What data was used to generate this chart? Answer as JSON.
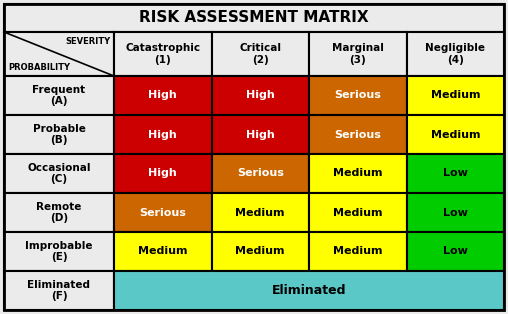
{
  "title": "RISK ASSESSMENT MATRIX",
  "col_headers": [
    "Catastrophic\n(1)",
    "Critical\n(2)",
    "Marginal\n(3)",
    "Negligible\n(4)"
  ],
  "row_headers": [
    "Frequent\n(A)",
    "Probable\n(B)",
    "Occasional\n(C)",
    "Remote\n(D)",
    "Improbable\n(E)",
    "Eliminated\n(F)"
  ],
  "header_label_severity": "SEVERITY",
  "header_label_probability": "PROBABILITY",
  "cells": [
    [
      "High",
      "High",
      "Serious",
      "Medium"
    ],
    [
      "High",
      "High",
      "Serious",
      "Medium"
    ],
    [
      "High",
      "Serious",
      "Medium",
      "Low"
    ],
    [
      "Serious",
      "Medium",
      "Medium",
      "Low"
    ],
    [
      "Medium",
      "Medium",
      "Medium",
      "Low"
    ],
    [
      "Eliminated",
      "Eliminated",
      "Eliminated",
      "Eliminated"
    ]
  ],
  "cell_colors": [
    [
      "#CC0000",
      "#CC0000",
      "#CC6600",
      "#FFFF00"
    ],
    [
      "#CC0000",
      "#CC0000",
      "#CC6600",
      "#FFFF00"
    ],
    [
      "#CC0000",
      "#CC6600",
      "#FFFF00",
      "#00CC00"
    ],
    [
      "#CC6600",
      "#FFFF00",
      "#FFFF00",
      "#00CC00"
    ],
    [
      "#FFFF00",
      "#FFFF00",
      "#FFFF00",
      "#00CC00"
    ],
    [
      "#5BC8C8",
      "#5BC8C8",
      "#5BC8C8",
      "#5BC8C8"
    ]
  ],
  "text_colors": [
    [
      "#FFFFFF",
      "#FFFFFF",
      "#FFFFFF",
      "#000000"
    ],
    [
      "#FFFFFF",
      "#FFFFFF",
      "#FFFFFF",
      "#000000"
    ],
    [
      "#FFFFFF",
      "#FFFFFF",
      "#000000",
      "#000000"
    ],
    [
      "#FFFFFF",
      "#000000",
      "#000000",
      "#000000"
    ],
    [
      "#000000",
      "#000000",
      "#000000",
      "#000000"
    ],
    [
      "#000000",
      "#000000",
      "#000000",
      "#000000"
    ]
  ],
  "bg_color": "#EBEBEB",
  "border_color": "#000000",
  "title_fontsize": 11,
  "header_fontsize": 7.5,
  "cell_fontsize": 8,
  "row_header_fontsize": 7.5
}
